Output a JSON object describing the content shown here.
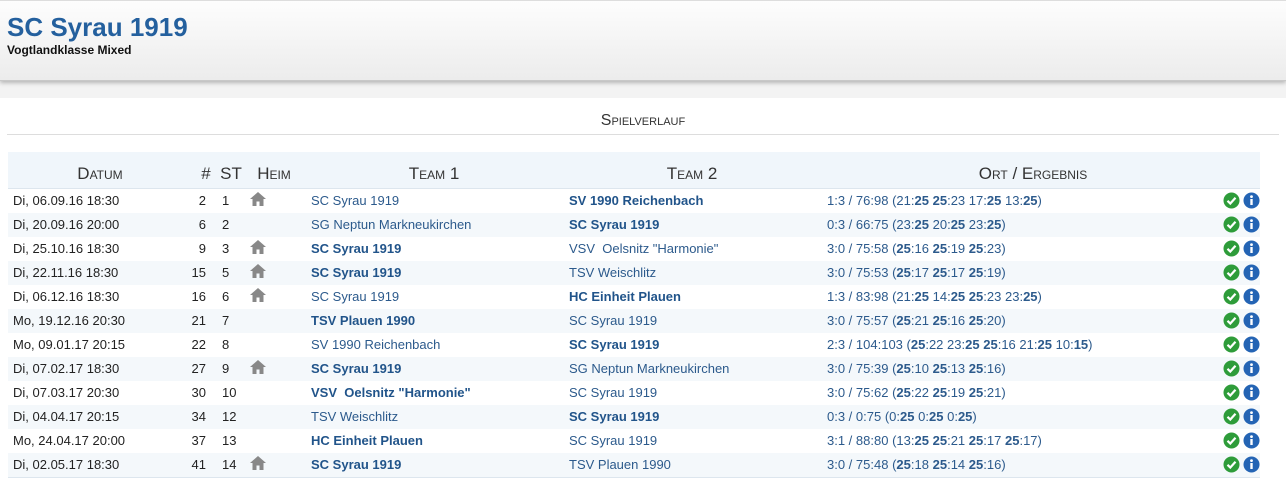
{
  "header": {
    "title": "SC Syrau 1919",
    "subtitle": "Vogtlandklasse Mixed"
  },
  "section": {
    "title": "Spielverlauf"
  },
  "table": {
    "columns": [
      "Datum",
      "#",
      "ST",
      "Heim",
      "Team 1",
      "Team 2",
      "Ort / Ergebnis"
    ],
    "rows": [
      {
        "datum": "Di, 06.09.16 18:30",
        "nr": "2",
        "st": "1",
        "heim": true,
        "team1": "SC Syrau 1919",
        "team2": "SV 1990 Reichenbach",
        "ergebnis": "1:3 / 76:98 (21:25 25:23 17:25 13:25)"
      },
      {
        "datum": "Di, 20.09.16 20:00",
        "nr": "6",
        "st": "2",
        "heim": false,
        "team1": "SG Neptun Markneukirchen",
        "team2": "SC Syrau 1919",
        "ergebnis": "0:3 / 66:75 (23:25 20:25 23:25)"
      },
      {
        "datum": "Di, 25.10.16 18:30",
        "nr": "9",
        "st": "3",
        "heim": true,
        "team1": "SC Syrau 1919",
        "team2": "VSV  Oelsnitz \"Harmonie\"",
        "ergebnis": "3:0 / 75:58 (25:16 25:19 25:23)"
      },
      {
        "datum": "Di, 22.11.16 18:30",
        "nr": "15",
        "st": "5",
        "heim": true,
        "team1": "SC Syrau 1919",
        "team2": "TSV Weischlitz",
        "ergebnis": "3:0 / 75:53 (25:17 25:17 25:19)"
      },
      {
        "datum": "Di, 06.12.16 18:30",
        "nr": "16",
        "st": "6",
        "heim": true,
        "team1": "SC Syrau 1919",
        "team2": "HC Einheit Plauen",
        "ergebnis": "1:3 / 83:98 (21:25 14:25 25:23 23:25)"
      },
      {
        "datum": "Mo, 19.12.16 20:30",
        "nr": "21",
        "st": "7",
        "heim": false,
        "team1": "TSV Plauen 1990",
        "team2": "SC Syrau 1919",
        "ergebnis": "3:0 / 75:57 (25:21 25:16 25:20)"
      },
      {
        "datum": "Mo, 09.01.17 20:15",
        "nr": "22",
        "st": "8",
        "heim": false,
        "team1": "SV 1990 Reichenbach",
        "team2": "SC Syrau 1919",
        "ergebnis": "2:3 / 104:103 (25:22 23:25 25:16 21:25 10:15)"
      },
      {
        "datum": "Di, 07.02.17 18:30",
        "nr": "27",
        "st": "9",
        "heim": true,
        "team1": "SC Syrau 1919",
        "team2": "SG Neptun Markneukirchen",
        "ergebnis": "3:0 / 75:39 (25:10 25:13 25:16)"
      },
      {
        "datum": "Di, 07.03.17 20:30",
        "nr": "30",
        "st": "10",
        "heim": false,
        "team1": "VSV  Oelsnitz \"Harmonie\"",
        "team2": "SC Syrau 1919",
        "ergebnis": "3:0 / 75:62 (25:22 25:19 25:21)"
      },
      {
        "datum": "Di, 04.04.17 20:15",
        "nr": "34",
        "st": "12",
        "heim": false,
        "team1": "TSV Weischlitz",
        "team2": "SC Syrau 1919",
        "ergebnis": "0:3 / 0:75 (0:25 0:25 0:25)"
      },
      {
        "datum": "Mo, 24.04.17 20:00",
        "nr": "37",
        "st": "13",
        "heim": false,
        "team1": "HC Einheit Plauen",
        "team2": "SC Syrau 1919",
        "ergebnis": "3:1 / 88:80 (13:25 25:21 25:17 25:17)"
      },
      {
        "datum": "Di, 02.05.17 18:30",
        "nr": "41",
        "st": "14",
        "heim": true,
        "team1": "SC Syrau 1919",
        "team2": "TSV Plauen 1990",
        "ergebnis": "3:0 / 75:48 (25:18 25:14 25:16)"
      }
    ]
  }
}
